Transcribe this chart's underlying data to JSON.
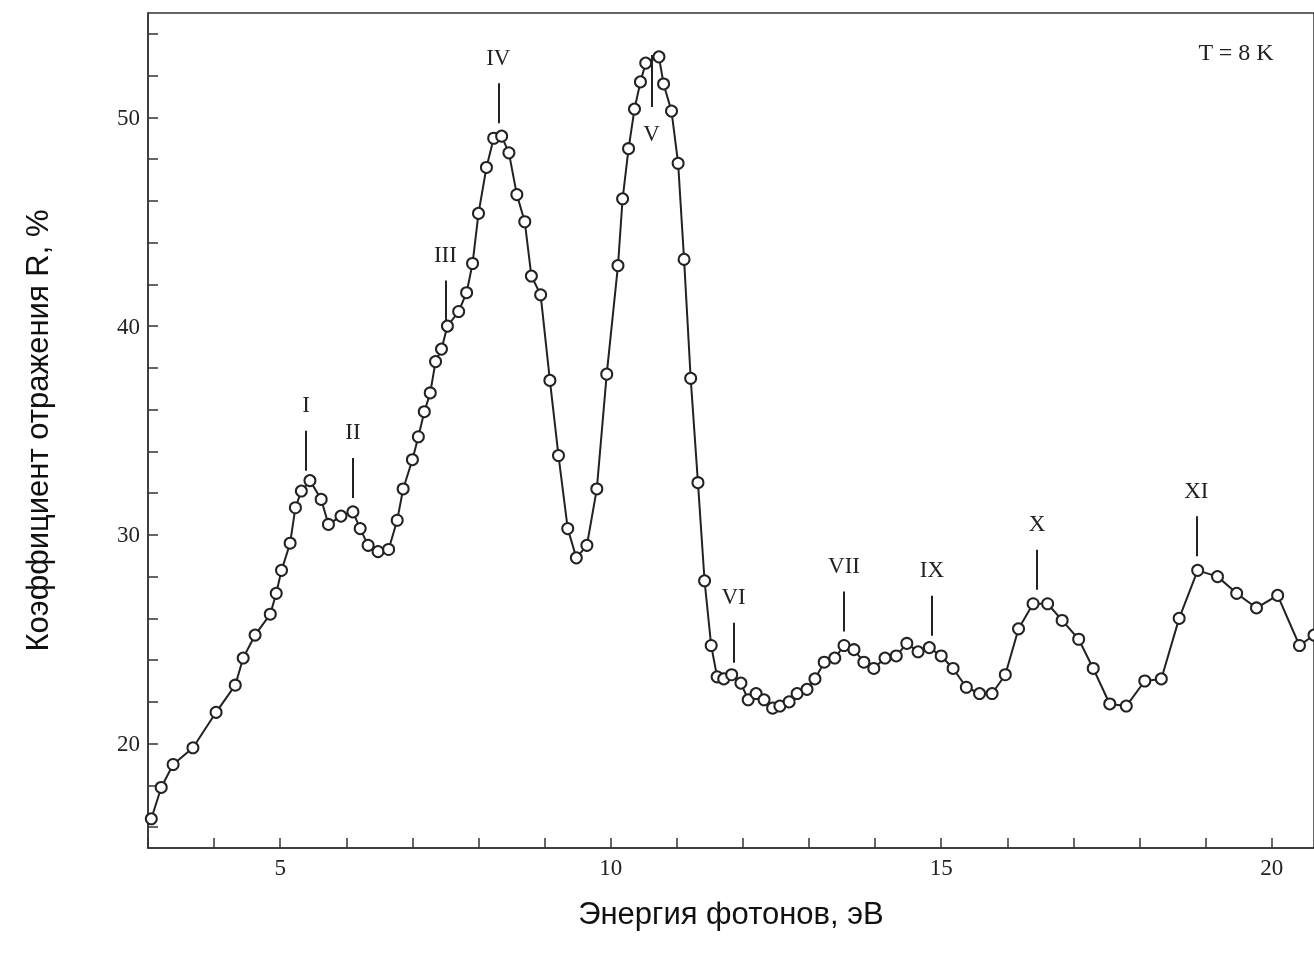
{
  "chart_data": {
    "type": "line",
    "xlabel": "Энергия фотонов, эВ",
    "ylabel": "Коэффициент отражения R, %",
    "marker": "circle",
    "line_style": "solid",
    "grid": false,
    "xlim": [
      3,
      20.64
    ],
    "ylim": [
      15,
      55
    ],
    "xticks": [
      {
        "value": 3,
        "label": null
      },
      {
        "value": 4,
        "label": null
      },
      5,
      {
        "value": 6,
        "label": null
      },
      {
        "value": 7,
        "label": null
      },
      {
        "value": 8,
        "label": null
      },
      {
        "value": 9,
        "label": null
      },
      10,
      {
        "value": 11,
        "label": null
      },
      {
        "value": 12,
        "label": null
      },
      {
        "value": 13,
        "label": null
      },
      {
        "value": 14,
        "label": null
      },
      15,
      {
        "value": 16,
        "label": null
      },
      {
        "value": 17,
        "label": null
      },
      {
        "value": 18,
        "label": null
      },
      {
        "value": 19,
        "label": null
      },
      20
    ],
    "yticks": [
      {
        "value": 16,
        "label": null
      },
      {
        "value": 18,
        "label": null
      },
      20,
      {
        "value": 22,
        "label": null
      },
      {
        "value": 24,
        "label": null
      },
      {
        "value": 26,
        "label": null
      },
      {
        "value": 28,
        "label": null
      },
      30,
      {
        "value": 32,
        "label": null
      },
      {
        "value": 34,
        "label": null
      },
      {
        "value": 36,
        "label": null
      },
      {
        "value": 38,
        "label": null
      },
      40,
      {
        "value": 42,
        "label": null
      },
      {
        "value": 44,
        "label": null
      },
      {
        "value": 46,
        "label": null
      },
      {
        "value": 48,
        "label": null
      },
      50,
      {
        "value": 52,
        "label": null
      },
      {
        "value": 54,
        "label": null
      }
    ],
    "series": [
      {
        "color": "#222222",
        "x": [
          3.05,
          3.2,
          3.38,
          3.68,
          4.03,
          4.32,
          4.44,
          4.62,
          4.85,
          4.94,
          5.02,
          5.15,
          5.23,
          5.32,
          5.45,
          5.62,
          5.73,
          5.92,
          6.1,
          6.21,
          6.33,
          6.48,
          6.64,
          6.77,
          6.86,
          7.0,
          7.09,
          7.18,
          7.27,
          7.35,
          7.44,
          7.53,
          7.7,
          7.82,
          7.91,
          8.0,
          8.12,
          8.23,
          8.35,
          8.46,
          8.58,
          8.7,
          8.8,
          8.94,
          9.08,
          9.21,
          9.35,
          9.48,
          9.64,
          9.79,
          9.94,
          10.11,
          10.18,
          10.27,
          10.36,
          10.45,
          10.53,
          10.73,
          10.8,
          10.92,
          11.02,
          11.11,
          11.21,
          11.32,
          11.42,
          11.52,
          11.61,
          11.71,
          11.83,
          11.97,
          12.08,
          12.2,
          12.32,
          12.45,
          12.56,
          12.7,
          12.82,
          12.97,
          13.09,
          13.23,
          13.39,
          13.53,
          13.68,
          13.83,
          13.98,
          14.15,
          14.32,
          14.48,
          14.65,
          14.82,
          15.0,
          15.18,
          15.38,
          15.58,
          15.77,
          15.97,
          16.17,
          16.39,
          16.61,
          16.83,
          17.08,
          17.3,
          17.55,
          17.8,
          18.08,
          18.33,
          18.6,
          18.88,
          19.18,
          19.47,
          19.77,
          20.09,
          20.42,
          20.64
        ],
        "values": [
          16.4,
          17.9,
          19.0,
          19.8,
          21.5,
          22.8,
          24.1,
          25.2,
          26.2,
          27.2,
          28.3,
          29.6,
          31.3,
          32.1,
          32.6,
          31.7,
          30.5,
          30.9,
          31.1,
          30.3,
          29.5,
          29.2,
          29.3,
          30.7,
          32.2,
          33.6,
          34.7,
          35.9,
          36.8,
          38.3,
          38.9,
          40.0,
          40.7,
          41.6,
          43.0,
          45.4,
          47.6,
          49.0,
          49.1,
          48.3,
          46.3,
          45.0,
          42.4,
          41.5,
          37.4,
          33.8,
          30.3,
          28.9,
          29.5,
          32.2,
          37.7,
          42.9,
          46.1,
          48.5,
          50.4,
          51.7,
          52.6,
          52.9,
          51.6,
          50.3,
          47.8,
          43.2,
          37.5,
          32.5,
          27.8,
          24.7,
          23.2,
          23.1,
          23.3,
          22.9,
          22.1,
          22.4,
          22.1,
          21.7,
          21.8,
          22.0,
          22.4,
          22.6,
          23.1,
          23.9,
          24.1,
          24.7,
          24.5,
          23.9,
          23.6,
          24.1,
          24.2,
          24.8,
          24.4,
          24.6,
          24.2,
          23.6,
          22.7,
          22.4,
          22.4,
          23.3,
          25.5,
          26.7,
          26.7,
          25.9,
          25.0,
          23.6,
          21.9,
          21.8,
          23.0,
          23.1,
          26.0,
          28.3,
          28.0,
          27.2,
          26.5,
          27.1,
          24.7,
          25.2
        ]
      }
    ],
    "annotations": [
      {
        "text": "I",
        "x": 5.39,
        "y": 32.4
      },
      {
        "text": "II",
        "x": 6.1,
        "y": 31.1
      },
      {
        "text": "III",
        "x": 7.5,
        "y": 39.6
      },
      {
        "text": "IV",
        "x": 8.3,
        "y": 49.05
      },
      {
        "text": "V",
        "x": 10.62,
        "y": 52.7
      },
      {
        "text": "VI",
        "x": 11.86,
        "y": 23.2
      },
      {
        "text": "VII",
        "x": 13.53,
        "y": 24.7
      },
      {
        "text": "IX",
        "x": 14.86,
        "y": 24.5
      },
      {
        "text": "X",
        "x": 16.45,
        "y": 26.7
      },
      {
        "text": "XI",
        "x": 18.86,
        "y": 28.3
      },
      "T = 8 K"
    ]
  }
}
